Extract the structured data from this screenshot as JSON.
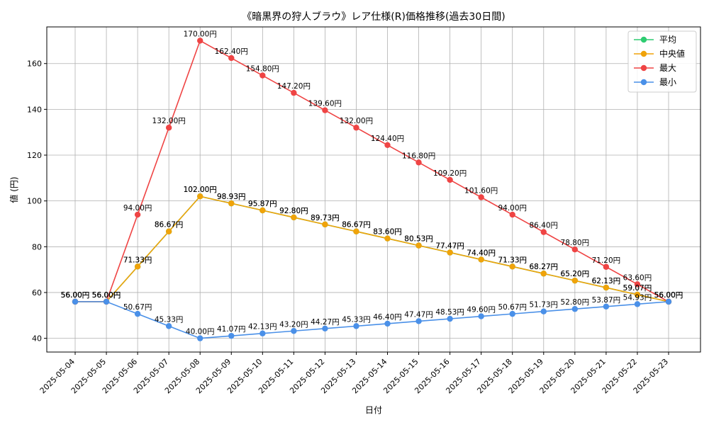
{
  "chart_data": {
    "type": "line",
    "title": "《暗黒界の狩人ブラウ》レア仕様(R)価格推移(過去30日間)",
    "xlabel": "日付",
    "ylabel": "値 (円)",
    "ylim": [
      34,
      176
    ],
    "yticks": [
      40,
      60,
      80,
      100,
      120,
      140,
      160
    ],
    "grid": true,
    "legend_position": "top-right",
    "categories": [
      "2025-05-04",
      "2025-05-05",
      "2025-05-06",
      "2025-05-07",
      "2025-05-08",
      "2025-05-09",
      "2025-05-10",
      "2025-05-11",
      "2025-05-12",
      "2025-05-13",
      "2025-05-14",
      "2025-05-15",
      "2025-05-16",
      "2025-05-17",
      "2025-05-18",
      "2025-05-19",
      "2025-05-20",
      "2025-05-21",
      "2025-05-22",
      "2025-05-23"
    ],
    "series": [
      {
        "name": "平均",
        "color": "#2ecc71",
        "values": [
          56.0,
          56.0,
          71.33,
          86.67,
          102.0,
          98.93,
          95.87,
          92.8,
          89.73,
          86.67,
          83.6,
          80.53,
          77.47,
          74.4,
          71.33,
          68.27,
          65.2,
          62.13,
          59.07,
          56.0
        ],
        "labels": [
          "56.00円",
          "56.00円",
          "71.33円",
          "86.67円",
          "102.00円",
          "98.93円",
          "95.87円",
          "92.80円",
          "89.73円",
          "86.67円",
          "83.60円",
          "80.53円",
          "77.47円",
          "74.40円",
          "71.33円",
          "68.27円",
          "65.20円",
          "62.13円",
          "59.07円",
          "56.00円"
        ]
      },
      {
        "name": "中央値",
        "color": "#f0a30a",
        "values": [
          56.0,
          56.0,
          71.33,
          86.67,
          102.0,
          98.93,
          95.87,
          92.8,
          89.73,
          86.67,
          83.6,
          80.53,
          77.47,
          74.4,
          71.33,
          68.27,
          65.2,
          62.13,
          59.07,
          56.0
        ],
        "labels": [
          "56.00円",
          "56.00円",
          "71.33円",
          "86.67円",
          "102.00円",
          "98.93円",
          "95.87円",
          "92.80円",
          "89.73円",
          "86.67円",
          "83.60円",
          "80.53円",
          "77.47円",
          "74.40円",
          "71.33円",
          "68.27円",
          "65.20円",
          "62.13円",
          "59.07円",
          "56.00円"
        ]
      },
      {
        "name": "最大",
        "color": "#ef4444",
        "values": [
          56.0,
          56.0,
          94.0,
          132.0,
          170.0,
          162.4,
          154.8,
          147.2,
          139.6,
          132.0,
          124.4,
          116.8,
          109.2,
          101.6,
          94.0,
          86.4,
          78.8,
          71.2,
          63.6,
          56.0
        ],
        "labels": [
          "56.00円",
          "56.00円",
          "94.00円",
          "132.00円",
          "170.00円",
          "162.40円",
          "154.80円",
          "147.20円",
          "139.60円",
          "132.00円",
          "124.40円",
          "116.80円",
          "109.20円",
          "101.60円",
          "94.00円",
          "86.40円",
          "78.80円",
          "71.20円",
          "63.60円",
          "56.00円"
        ]
      },
      {
        "name": "最小",
        "color": "#4a90e8",
        "values": [
          56.0,
          56.0,
          50.67,
          45.33,
          40.0,
          41.07,
          42.13,
          43.2,
          44.27,
          45.33,
          46.4,
          47.47,
          48.53,
          49.6,
          50.67,
          51.73,
          52.8,
          53.87,
          54.93,
          56.0
        ],
        "labels": [
          "56.00円",
          "56.00円",
          "50.67円",
          "45.33円",
          "40.00円",
          "41.07円",
          "42.13円",
          "43.20円",
          "44.27円",
          "45.33円",
          "46.40円",
          "47.47円",
          "48.53円",
          "49.60円",
          "50.67円",
          "51.73円",
          "52.80円",
          "53.87円",
          "54.93円",
          "56.00円"
        ]
      }
    ]
  }
}
